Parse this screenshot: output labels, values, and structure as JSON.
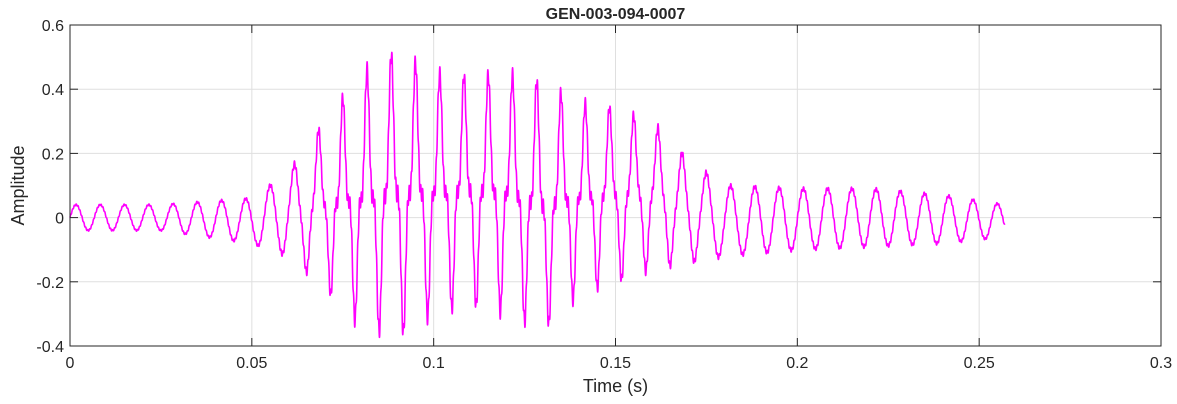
{
  "chart_data": {
    "type": "line",
    "title": "GEN-003-094-0007",
    "xlabel": "Time (s)",
    "ylabel": "Amplitude",
    "xlim": [
      0,
      0.3
    ],
    "ylim": [
      -0.4,
      0.6
    ],
    "xticks": [
      0,
      0.05,
      0.1,
      0.15,
      0.2,
      0.25,
      0.3
    ],
    "xtick_labels": [
      "0",
      "0.05",
      "0.1",
      "0.15",
      "0.2",
      "0.25",
      "0.3"
    ],
    "yticks": [
      -0.4,
      -0.2,
      0,
      0.2,
      0.4,
      0.6
    ],
    "ytick_labels": [
      "-0.4",
      "-0.2",
      "0",
      "0.2",
      "0.4",
      "0.6"
    ],
    "grid": true,
    "line_color": "#ff00ff",
    "series": [
      {
        "x": [
          0,
          0.025,
          0.05,
          0.06,
          0.07,
          0.08,
          0.09,
          0.1,
          0.11,
          0.12,
          0.13,
          0.14,
          0.15,
          0.16,
          0.17,
          0.18,
          0.2,
          0.22,
          0.24,
          0.257
        ],
        "max": [
          0.04,
          0.04,
          0.06,
          0.14,
          0.3,
          0.45,
          0.52,
          0.45,
          0.44,
          0.45,
          0.42,
          0.36,
          0.34,
          0.3,
          0.18,
          0.1,
          0.09,
          0.09,
          0.07,
          0.04
        ],
        "min": [
          -0.04,
          -0.04,
          -0.08,
          -0.12,
          -0.22,
          -0.34,
          -0.37,
          -0.3,
          -0.27,
          -0.3,
          -0.35,
          -0.24,
          -0.2,
          -0.16,
          -0.14,
          -0.12,
          -0.1,
          -0.09,
          -0.08,
          -0.06
        ]
      }
    ]
  }
}
